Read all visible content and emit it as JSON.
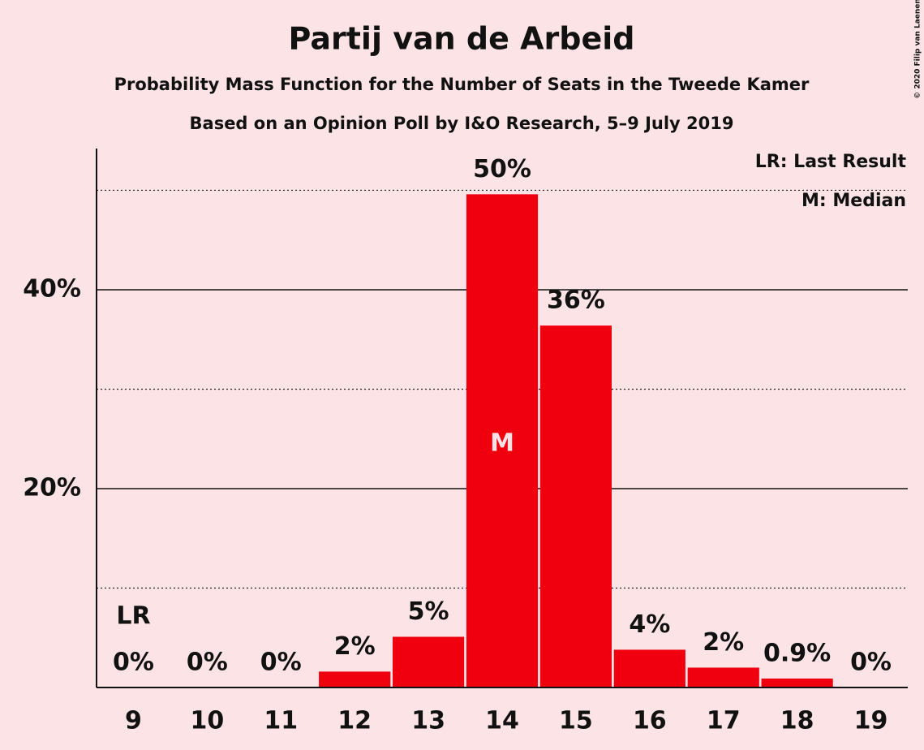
{
  "chart_data": {
    "type": "bar",
    "title": "Partij van de Arbeid",
    "subtitles": [
      "Probability Mass Function for the Number of Seats in the Tweede Kamer",
      "Based on an Opinion Poll by I&O Research, 5–9 July 2019"
    ],
    "credit": "© 2020 Filip van Laenen",
    "categories": [
      9,
      10,
      11,
      12,
      13,
      14,
      15,
      16,
      17,
      18,
      19
    ],
    "values": [
      0,
      0,
      0,
      1.6,
      5.1,
      49.6,
      36.4,
      3.8,
      2.0,
      0.9,
      0
    ],
    "value_labels": [
      "0%",
      "0%",
      "0%",
      "2%",
      "5%",
      "50%",
      "36%",
      "4%",
      "2%",
      "0.9%",
      "0%"
    ],
    "color": "#f0000f",
    "ylim": [
      0,
      54.2
    ],
    "yticks": [
      {
        "value": 20,
        "label": "20%"
      },
      {
        "value": 40,
        "label": "40%"
      }
    ],
    "minor_yticks": [
      10,
      30,
      50
    ],
    "grid": true,
    "last_result": {
      "label": "LR",
      "value": 9
    },
    "median": {
      "label": "M",
      "value": 14
    },
    "legend": [
      "LR: Last Result",
      "M: Median"
    ]
  }
}
